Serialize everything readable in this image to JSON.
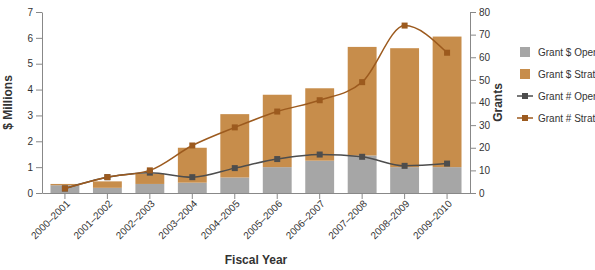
{
  "chart_data": {
    "type": "bar",
    "stacked": true,
    "x_label": "Fiscal Year",
    "y_label": "$ Millions",
    "y2_label": "Grants",
    "categories": [
      "2000–2001",
      "2001–2002",
      "2002–2003",
      "2003–2004",
      "2004–2005",
      "2005–2006",
      "2006–2007",
      "2007–2008",
      "2008–2009",
      "2009–2010"
    ],
    "ylim": [
      0,
      7
    ],
    "yticks": [
      0,
      1,
      2,
      3,
      4,
      5,
      6,
      7
    ],
    "y2lim": [
      0,
      80
    ],
    "y2ticks": [
      0,
      10,
      20,
      30,
      40,
      50,
      60,
      70,
      80
    ],
    "legend": "right",
    "grid": false,
    "series": [
      {
        "name": "Grant $ Open",
        "type": "bar",
        "color": "#a6a6a6",
        "values": [
          0.3,
          0.2,
          0.35,
          0.4,
          0.6,
          1.0,
          1.25,
          1.45,
          1.0,
          1.0
        ]
      },
      {
        "name": "Grant $ Strategic",
        "type": "bar",
        "color": "#c78d4b",
        "values": [
          0.05,
          0.25,
          0.4,
          1.35,
          2.45,
          2.8,
          2.8,
          4.2,
          4.6,
          5.05
        ]
      },
      {
        "name": "Grant # Open",
        "type": "line",
        "axis": "y2",
        "color": "#4d4d4d",
        "marker": "square",
        "line_style": "smooth",
        "values": [
          2,
          7,
          9,
          7,
          11,
          15,
          17,
          16,
          12,
          13
        ]
      },
      {
        "name": "Grant # Strategic",
        "type": "line",
        "axis": "y2",
        "color": "#9c5a1e",
        "marker": "square",
        "line_style": "smooth",
        "values": [
          2,
          7,
          10,
          21,
          29,
          36,
          41,
          49,
          74,
          62
        ]
      }
    ]
  }
}
